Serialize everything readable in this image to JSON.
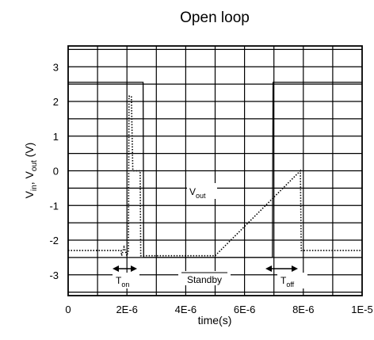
{
  "chart_data": {
    "type": "line",
    "title": "Open loop",
    "xlabel": "time(s)",
    "ylabel": {
      "main": "V",
      "sub1": "in",
      "mid": ", V",
      "sub2": "out",
      "tail": " (V)"
    },
    "xlim": [
      0,
      1e-05
    ],
    "ylim": [
      -3.6,
      3.6
    ],
    "x_ticks": [
      0,
      2e-06,
      4e-06,
      6e-06,
      8e-06,
      1e-05
    ],
    "x_tick_labels": [
      "0",
      "2E-6",
      "4E-6",
      "6E-6",
      "8E-6",
      "1E-5"
    ],
    "y_ticks": [
      3,
      2,
      1,
      0,
      -1,
      -2,
      -3
    ],
    "y_tick_labels": [
      "3",
      "2",
      "1",
      "0",
      "-1",
      "-2",
      "-3"
    ],
    "grid": true,
    "series": [
      {
        "style": "solid",
        "x": [
          0,
          2.55e-06,
          2.57e-06,
          6.95e-06,
          6.97e-06,
          1e-05
        ],
        "y": [
          2.55,
          2.55,
          -2.5,
          -2.5,
          2.55,
          2.55
        ]
      },
      {
        "style": "dotted",
        "x": [
          0,
          1.8e-06,
          1.82e-06,
          1.9e-06,
          2e-06,
          2.05e-06,
          2.07e-06,
          2.15e-06,
          2.2e-06,
          2.45e-06,
          2.47e-06,
          5e-06,
          7.9e-06,
          7.93e-06,
          1e-05
        ],
        "y": [
          -2.3,
          -2.3,
          -2.45,
          -2.2,
          -2.45,
          -2.3,
          2.15,
          2.15,
          0.0,
          0.0,
          -2.45,
          -2.45,
          0.0,
          -2.3,
          -2.3
        ]
      }
    ],
    "annotations": {
      "vout": {
        "main": "V",
        "sub": "out"
      },
      "ton": {
        "main": "T",
        "sub": "on"
      },
      "standby": "Standby",
      "toff": {
        "main": "T",
        "sub": "off"
      }
    }
  }
}
